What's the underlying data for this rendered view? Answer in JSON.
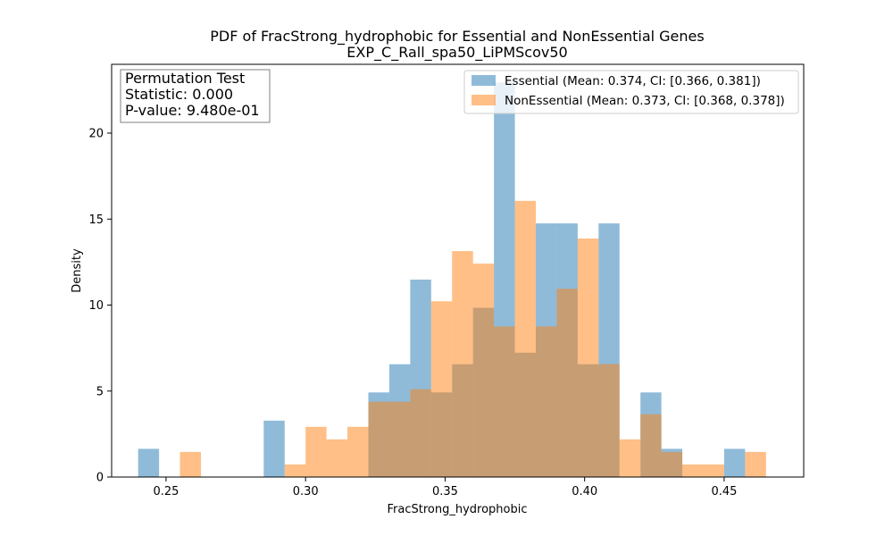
{
  "chart_data": {
    "type": "bar",
    "title": "PDF of FracStrong_hydrophobic for Essential and NonEssential Genes",
    "subtitle": "EXP_C_Rall_spa50_LiPMScov50",
    "xlabel": "FracStrong_hydrophobic",
    "ylabel": "Density",
    "xlim": [
      0.2305,
      0.4785
    ],
    "ylim": [
      0,
      24
    ],
    "xticks": [
      0.25,
      0.3,
      0.35,
      0.4,
      0.45
    ],
    "xtick_labels": [
      "0.25",
      "0.30",
      "0.35",
      "0.40",
      "0.45"
    ],
    "yticks": [
      0,
      5,
      10,
      15,
      20
    ],
    "ytick_labels": [
      "0",
      "5",
      "10",
      "15",
      "20"
    ],
    "grid": false,
    "legend_position": "top-right",
    "annotation": [
      "Permutation Test",
      "Statistic: 0.000",
      "P-value: 9.480e-01"
    ],
    "series": [
      {
        "name": "Essential (Mean: 0.374, CI: [0.366, 0.381])",
        "color": "#1f77b4",
        "alpha": 0.5,
        "bins": [
          {
            "x0": 0.24,
            "x1": 0.2475,
            "y": 1.64
          },
          {
            "x0": 0.285,
            "x1": 0.2925,
            "y": 3.28
          },
          {
            "x0": 0.3225,
            "x1": 0.33,
            "y": 4.92
          },
          {
            "x0": 0.33,
            "x1": 0.3375,
            "y": 6.56
          },
          {
            "x0": 0.3375,
            "x1": 0.345,
            "y": 11.48
          },
          {
            "x0": 0.345,
            "x1": 0.3525,
            "y": 4.92
          },
          {
            "x0": 0.3525,
            "x1": 0.36,
            "y": 6.56
          },
          {
            "x0": 0.36,
            "x1": 0.3675,
            "y": 9.84
          },
          {
            "x0": 0.3675,
            "x1": 0.375,
            "y": 22.95
          },
          {
            "x0": 0.375,
            "x1": 0.3825,
            "y": 7.23
          },
          {
            "x0": 0.3825,
            "x1": 0.39,
            "y": 14.75
          },
          {
            "x0": 0.39,
            "x1": 0.3975,
            "y": 14.75
          },
          {
            "x0": 0.3975,
            "x1": 0.405,
            "y": 6.56
          },
          {
            "x0": 0.405,
            "x1": 0.4125,
            "y": 14.75
          },
          {
            "x0": 0.42,
            "x1": 0.4275,
            "y": 4.92
          },
          {
            "x0": 0.4275,
            "x1": 0.435,
            "y": 1.64
          },
          {
            "x0": 0.45,
            "x1": 0.4575,
            "y": 1.64
          }
        ]
      },
      {
        "name": "NonEssential (Mean: 0.373, CI: [0.368, 0.378])",
        "color": "#ff7f0e",
        "alpha": 0.5,
        "bins": [
          {
            "x0": 0.255,
            "x1": 0.2625,
            "y": 1.46
          },
          {
            "x0": 0.2925,
            "x1": 0.3,
            "y": 0.73
          },
          {
            "x0": 0.3,
            "x1": 0.3075,
            "y": 2.92
          },
          {
            "x0": 0.3075,
            "x1": 0.315,
            "y": 2.19
          },
          {
            "x0": 0.315,
            "x1": 0.3225,
            "y": 2.92
          },
          {
            "x0": 0.3225,
            "x1": 0.3375,
            "y": 4.38
          },
          {
            "x0": 0.3375,
            "x1": 0.345,
            "y": 5.11
          },
          {
            "x0": 0.345,
            "x1": 0.3525,
            "y": 10.22
          },
          {
            "x0": 0.3525,
            "x1": 0.36,
            "y": 13.14
          },
          {
            "x0": 0.36,
            "x1": 0.3675,
            "y": 12.41
          },
          {
            "x0": 0.3675,
            "x1": 0.375,
            "y": 8.76
          },
          {
            "x0": 0.375,
            "x1": 0.3825,
            "y": 16.06
          },
          {
            "x0": 0.3825,
            "x1": 0.39,
            "y": 8.76
          },
          {
            "x0": 0.39,
            "x1": 0.3975,
            "y": 10.95
          },
          {
            "x0": 0.3975,
            "x1": 0.405,
            "y": 13.87
          },
          {
            "x0": 0.405,
            "x1": 0.4125,
            "y": 6.57
          },
          {
            "x0": 0.4125,
            "x1": 0.42,
            "y": 2.19
          },
          {
            "x0": 0.42,
            "x1": 0.4275,
            "y": 3.65
          },
          {
            "x0": 0.4275,
            "x1": 0.435,
            "y": 1.46
          },
          {
            "x0": 0.435,
            "x1": 0.45,
            "y": 0.73
          },
          {
            "x0": 0.4575,
            "x1": 0.465,
            "y": 1.46
          }
        ]
      }
    ]
  }
}
